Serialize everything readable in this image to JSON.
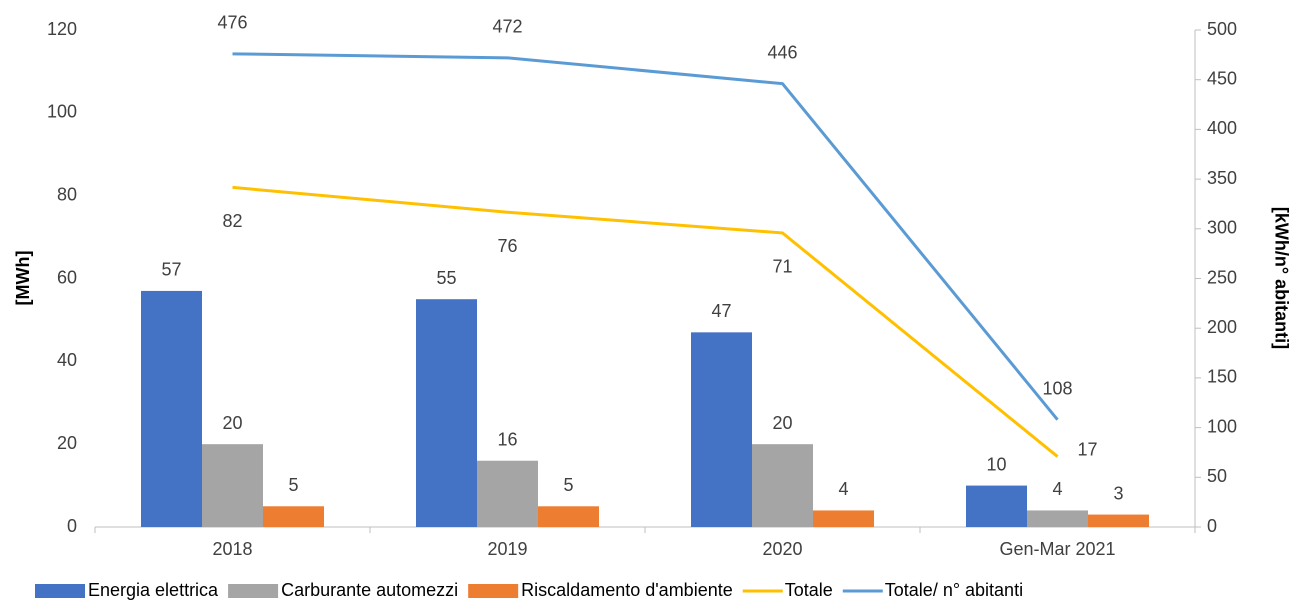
{
  "chart_data": {
    "type": "bar",
    "categories": [
      "2018",
      "2019",
      "2020",
      "Gen-Mar 2021"
    ],
    "y_label": "[MWh]",
    "y2_label": "[kWh/n° abitanti]",
    "ylim": [
      0,
      120
    ],
    "yticks": [
      0,
      20,
      40,
      60,
      80,
      100,
      120
    ],
    "y2lim": [
      0,
      500
    ],
    "y2ticks": [
      0,
      50,
      100,
      150,
      200,
      250,
      300,
      350,
      400,
      450,
      500
    ],
    "legend": "bottom",
    "series": [
      {
        "name": "Energia elettrica",
        "type": "bar",
        "color": "#4472c4",
        "values": [
          57,
          55,
          47,
          10
        ]
      },
      {
        "name": "Carburante automezzi",
        "type": "bar",
        "color": "#a5a5a5",
        "values": [
          20,
          16,
          20,
          4
        ]
      },
      {
        "name": "Riscaldamento d'ambiente",
        "type": "bar",
        "color": "#ed7d31",
        "values": [
          5,
          5,
          4,
          3
        ]
      },
      {
        "name": "Totale",
        "type": "line",
        "color": "#ffc000",
        "values": [
          82,
          76,
          71,
          17
        ]
      },
      {
        "name": "Totale/ n° abitanti",
        "type": "line",
        "axis": "y2",
        "color": "#5b9bd5",
        "values": [
          476,
          472,
          446,
          108
        ]
      }
    ]
  }
}
